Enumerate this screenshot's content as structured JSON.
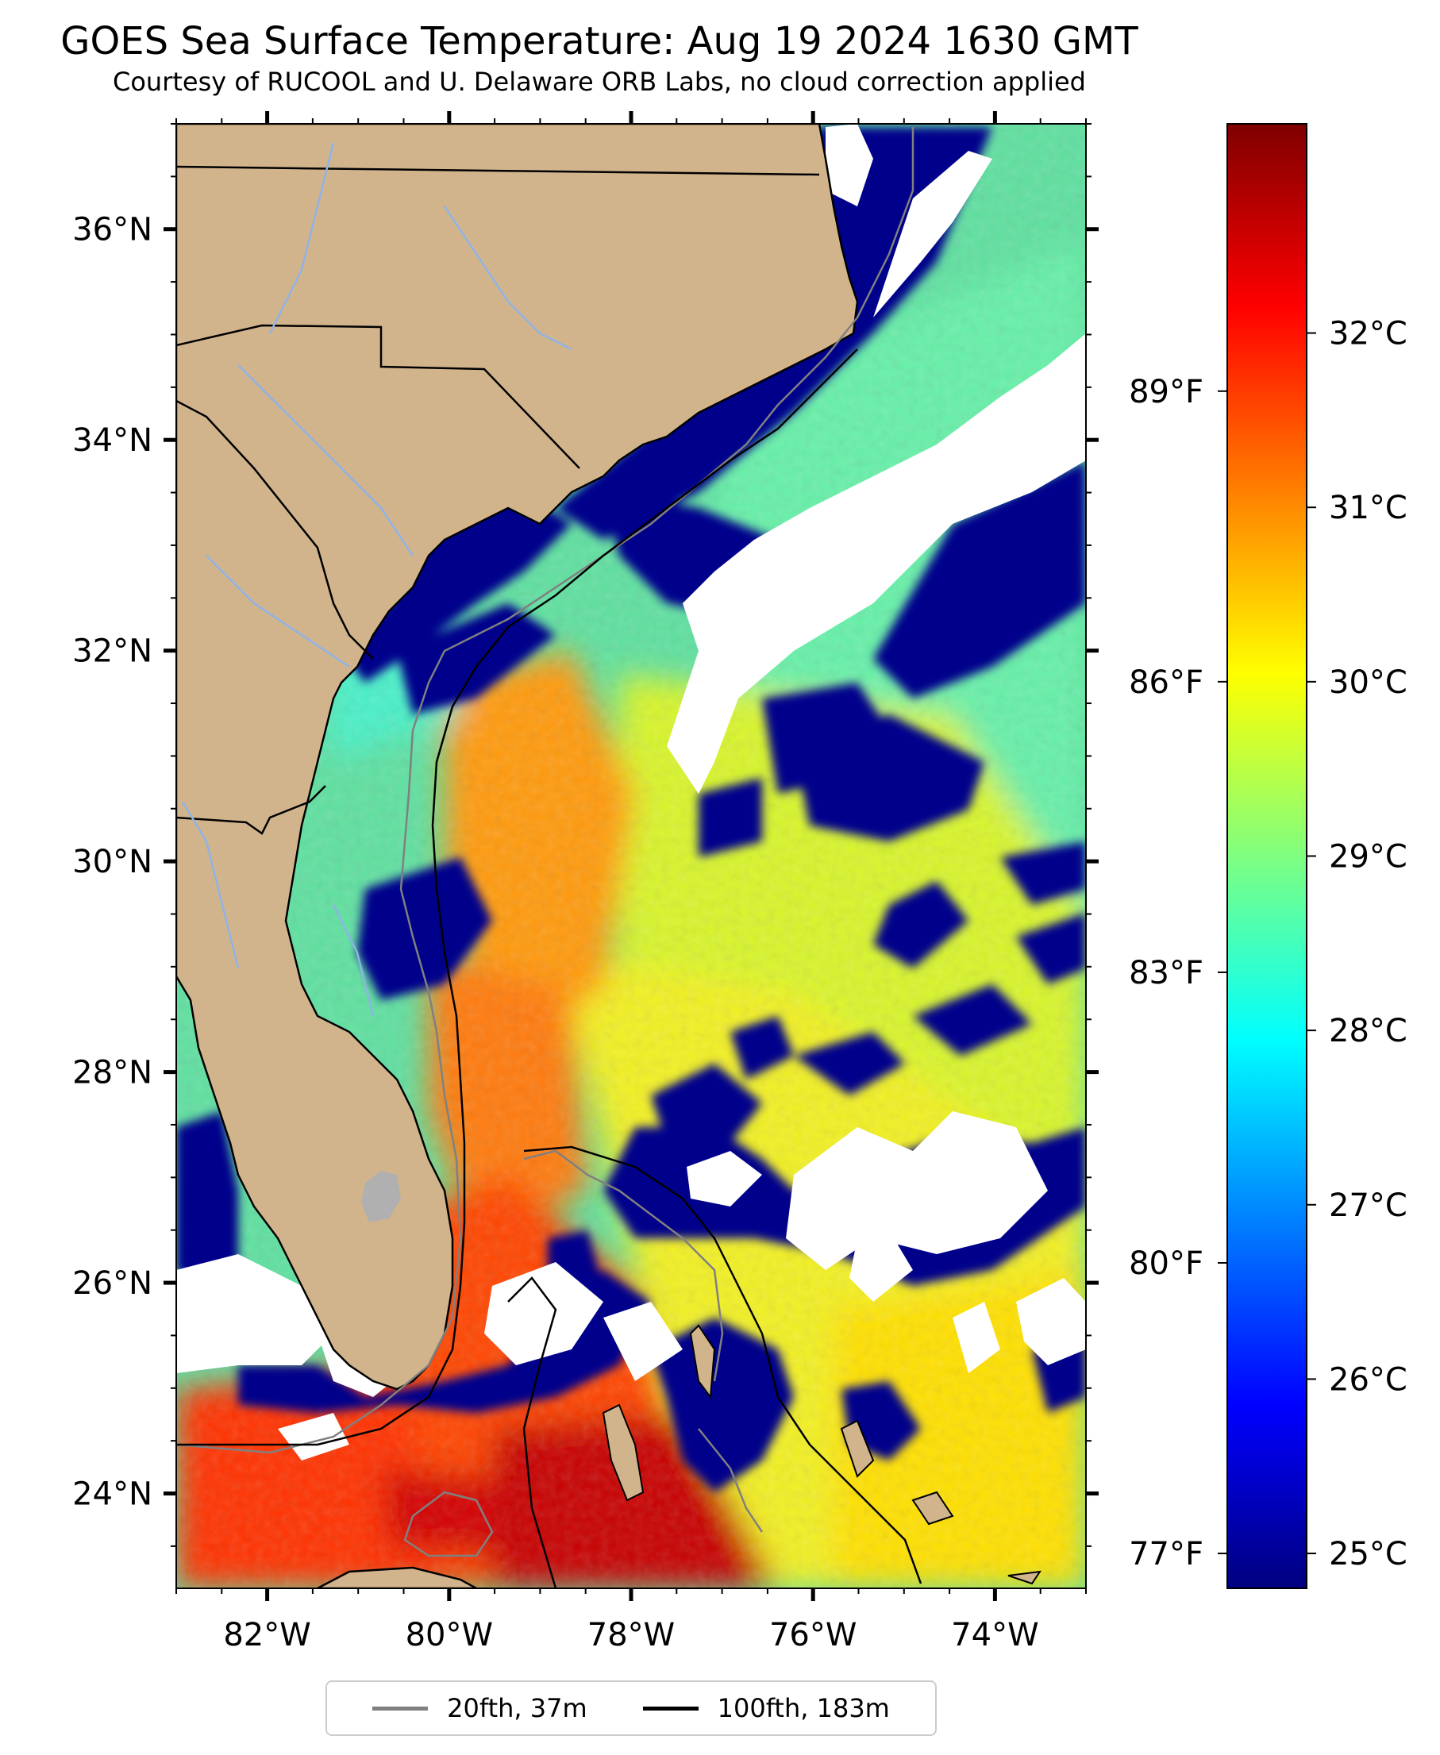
{
  "title": "GOES Sea Surface Temperature: Aug 19 2024 1630 GMT",
  "subtitle": "Courtesy of RUCOOL and U. Delaware ORB Labs, no cloud correction applied",
  "map": {
    "lon_range": [
      -83,
      -73
    ],
    "lat_range": [
      23.1,
      37
    ],
    "lon_ticks": [
      {
        "value": -82,
        "label": "82°W"
      },
      {
        "value": -80,
        "label": "80°W"
      },
      {
        "value": -78,
        "label": "78°W"
      },
      {
        "value": -76,
        "label": "76°W"
      },
      {
        "value": -74,
        "label": "74°W"
      }
    ],
    "lat_ticks": [
      {
        "value": 24,
        "label": "24°N"
      },
      {
        "value": 26,
        "label": "26°N"
      },
      {
        "value": 28,
        "label": "28°N"
      },
      {
        "value": 30,
        "label": "30°N"
      },
      {
        "value": 32,
        "label": "32°N"
      },
      {
        "value": 34,
        "label": "34°N"
      },
      {
        "value": 36,
        "label": "36°N"
      }
    ],
    "colors": {
      "land": "#d2b48c",
      "cloud": "#ffffff",
      "lake": "#b0b0b0",
      "river": "#8fb3e6",
      "border": "#000000"
    }
  },
  "colorbar": {
    "celsius_range": [
      24.8,
      33.2
    ],
    "celsius_ticks": [
      {
        "value": 25,
        "label": "25°C"
      },
      {
        "value": 26,
        "label": "26°C"
      },
      {
        "value": 27,
        "label": "27°C"
      },
      {
        "value": 28,
        "label": "28°C"
      },
      {
        "value": 29,
        "label": "29°C"
      },
      {
        "value": 30,
        "label": "30°C"
      },
      {
        "value": 31,
        "label": "31°C"
      },
      {
        "value": 32,
        "label": "32°C"
      }
    ],
    "fahrenheit_ticks": [
      {
        "value": 77,
        "label": "77°F"
      },
      {
        "value": 80,
        "label": "80°F"
      },
      {
        "value": 83,
        "label": "83°F"
      },
      {
        "value": 86,
        "label": "86°F"
      },
      {
        "value": 89,
        "label": "89°F"
      }
    ],
    "colormap": [
      "#00007f",
      "#0000ff",
      "#007fff",
      "#00ffff",
      "#7fff7f",
      "#ffff00",
      "#ff7f00",
      "#ff0000",
      "#7f0000"
    ]
  },
  "legend": {
    "items": [
      {
        "label": "20fth, 37m",
        "color": "#808080"
      },
      {
        "label": "100fth, 183m",
        "color": "#000000"
      }
    ]
  }
}
